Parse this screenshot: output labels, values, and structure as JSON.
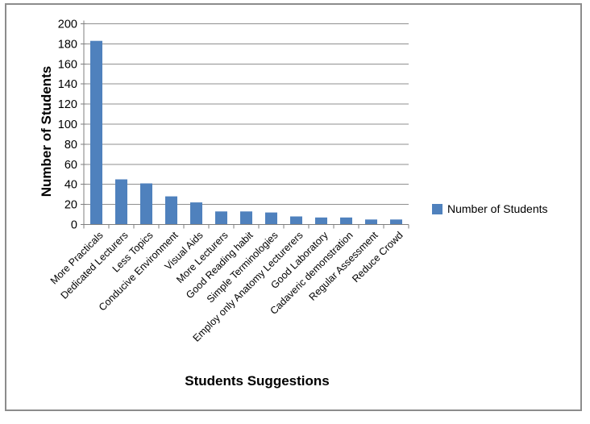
{
  "chart_data": {
    "type": "bar",
    "title": "",
    "xlabel": "Students Suggestions",
    "ylabel": "Number of Students",
    "legend": "Number of Students",
    "legend_position": "right-middle",
    "grid": "horizontal-major",
    "categories": [
      "More Practicals",
      "Dedicated Lecturers",
      "Less Topics",
      "Conducive Environment",
      "Visual Aids",
      "More Lecturers",
      "Good Reading habit",
      "Simple Terminologies",
      "Employ only Anatomy Lecturerers",
      "Good Laboratory",
      "Cadaveric demonstration",
      "Regular Assessment",
      "Reduce Crowd"
    ],
    "values": [
      183,
      45,
      41,
      28,
      22,
      13,
      13,
      12,
      8,
      7,
      7,
      5,
      5
    ],
    "ylim": [
      0,
      200
    ],
    "ytick_step": 20,
    "ytick_labels": [
      "0",
      "20",
      "40",
      "60",
      "80",
      "100",
      "120",
      "140",
      "160",
      "180",
      "200"
    ],
    "bar_color": "#4F81BD",
    "gridline_color": "#8f8f8f",
    "axis_color": "#7f7f7f",
    "border_color": "#8c8c8c",
    "text_color": "#000000"
  }
}
